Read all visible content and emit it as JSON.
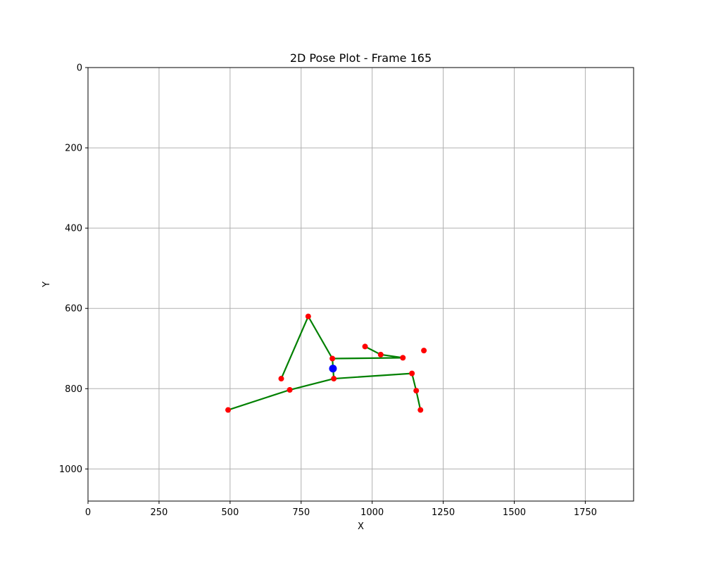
{
  "chart_data": {
    "type": "scatter",
    "title": "2D Pose Plot - Frame 165",
    "xlabel": "X",
    "ylabel": "Y",
    "xlim": [
      0,
      1920
    ],
    "ylim": [
      1080,
      0
    ],
    "y_inverted": true,
    "grid": true,
    "x_ticks": [
      0,
      250,
      500,
      750,
      1000,
      1250,
      1500,
      1750
    ],
    "y_ticks": [
      0,
      200,
      400,
      600,
      800,
      1000
    ],
    "keypoints": [
      {
        "x": 680,
        "y": 775
      },
      {
        "x": 775,
        "y": 620
      },
      {
        "x": 860,
        "y": 725
      },
      {
        "x": 865,
        "y": 775
      },
      {
        "x": 710,
        "y": 803
      },
      {
        "x": 493,
        "y": 853
      },
      {
        "x": 975,
        "y": 695
      },
      {
        "x": 1030,
        "y": 715
      },
      {
        "x": 1108,
        "y": 723
      },
      {
        "x": 1182,
        "y": 705
      },
      {
        "x": 1140,
        "y": 762
      },
      {
        "x": 1155,
        "y": 805
      },
      {
        "x": 1170,
        "y": 853
      }
    ],
    "center_point": {
      "x": 862,
      "y": 750
    },
    "connections": [
      [
        0,
        1
      ],
      [
        1,
        2
      ],
      [
        2,
        8
      ],
      [
        8,
        7
      ],
      [
        7,
        6
      ],
      [
        2,
        3
      ],
      [
        3,
        4
      ],
      [
        4,
        5
      ],
      [
        3,
        10
      ],
      [
        10,
        11
      ],
      [
        11,
        12
      ]
    ],
    "colors": {
      "keypoint": "#ff0000",
      "center": "#0000ff",
      "line": "#008000",
      "grid": "#b0b0b0"
    }
  }
}
